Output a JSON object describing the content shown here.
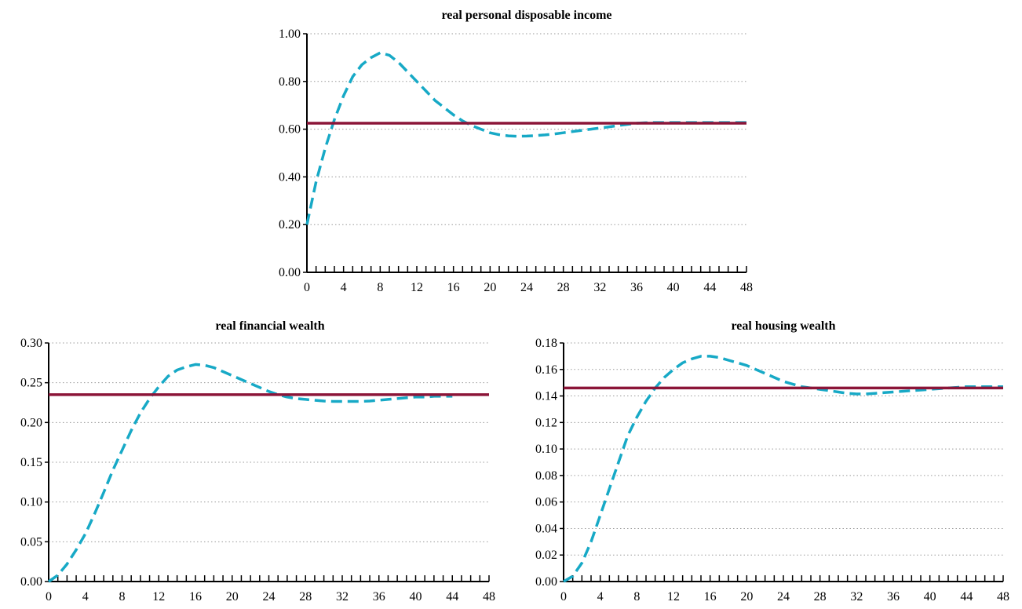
{
  "colors": {
    "series_dashed": "#17a9c6",
    "series_flat": "#8b1538",
    "grid": "#9a9a9a",
    "axis": "#000000"
  },
  "chart_data": [
    {
      "type": "line",
      "title": "real personal disposable income",
      "xlabel": "",
      "ylabel": "",
      "xlim": [
        0,
        48
      ],
      "ylim": [
        0,
        1.0
      ],
      "x_ticks": [
        "0",
        "4",
        "8",
        "12",
        "16",
        "20",
        "24",
        "28",
        "32",
        "36",
        "40",
        "44",
        "48"
      ],
      "y_ticks": [
        "0.00",
        "0.20",
        "0.40",
        "0.60",
        "0.80",
        "1.00"
      ],
      "grid": "horizontal dotted",
      "series": [
        {
          "style": "dashed",
          "x": [
            0,
            1,
            2,
            3,
            4,
            5,
            6,
            7,
            8,
            9,
            10,
            11,
            12,
            13,
            14,
            15,
            16,
            17,
            18,
            19,
            20,
            21,
            22,
            23,
            24,
            25,
            26,
            27,
            28,
            29,
            30,
            31,
            32,
            33,
            34,
            35,
            36,
            37,
            38,
            39,
            40,
            41,
            42,
            43,
            44,
            45,
            46,
            47,
            48
          ],
          "y": [
            0.2,
            0.38,
            0.52,
            0.64,
            0.74,
            0.82,
            0.87,
            0.9,
            0.92,
            0.91,
            0.88,
            0.84,
            0.8,
            0.76,
            0.72,
            0.69,
            0.66,
            0.635,
            0.615,
            0.6,
            0.585,
            0.577,
            0.572,
            0.57,
            0.571,
            0.573,
            0.576,
            0.58,
            0.585,
            0.59,
            0.595,
            0.6,
            0.605,
            0.61,
            0.615,
            0.62,
            0.625,
            0.627,
            0.628,
            0.628,
            0.628,
            0.628,
            0.628,
            0.628,
            0.628,
            0.628,
            0.628,
            0.628,
            0.628
          ]
        },
        {
          "style": "solid",
          "x": [
            0,
            48
          ],
          "y": [
            0.625,
            0.625
          ]
        }
      ]
    },
    {
      "type": "line",
      "title": "real financial wealth",
      "xlabel": "",
      "ylabel": "",
      "xlim": [
        0,
        48
      ],
      "ylim": [
        0,
        0.3
      ],
      "x_ticks": [
        "0",
        "4",
        "8",
        "12",
        "16",
        "20",
        "24",
        "28",
        "32",
        "36",
        "40",
        "44",
        "48"
      ],
      "y_ticks": [
        "0.00",
        "0.05",
        "0.10",
        "0.15",
        "0.20",
        "0.25",
        "0.30"
      ],
      "grid": "horizontal dotted",
      "series": [
        {
          "style": "dashed",
          "x": [
            0,
            1,
            2,
            3,
            4,
            5,
            6,
            7,
            8,
            9,
            10,
            11,
            12,
            13,
            14,
            15,
            16,
            17,
            18,
            19,
            20,
            21,
            22,
            23,
            24,
            25,
            26,
            27,
            28,
            29,
            30,
            31,
            32,
            33,
            34,
            35,
            36,
            37,
            38,
            39,
            40,
            41,
            42,
            43,
            44
          ],
          "y": [
            0.0,
            0.008,
            0.022,
            0.04,
            0.06,
            0.085,
            0.112,
            0.14,
            0.165,
            0.19,
            0.212,
            0.23,
            0.245,
            0.258,
            0.266,
            0.27,
            0.273,
            0.272,
            0.269,
            0.264,
            0.259,
            0.254,
            0.249,
            0.244,
            0.239,
            0.235,
            0.232,
            0.23,
            0.229,
            0.228,
            0.227,
            0.2265,
            0.2265,
            0.2265,
            0.2265,
            0.227,
            0.228,
            0.229,
            0.23,
            0.231,
            0.232,
            0.232,
            0.233,
            0.233,
            0.233
          ]
        },
        {
          "style": "solid",
          "x": [
            0,
            48
          ],
          "y": [
            0.235,
            0.235
          ]
        }
      ]
    },
    {
      "type": "line",
      "title": "real housing wealth",
      "xlabel": "",
      "ylabel": "",
      "xlim": [
        0,
        48
      ],
      "ylim": [
        0,
        0.18
      ],
      "x_ticks": [
        "0",
        "4",
        "8",
        "12",
        "16",
        "20",
        "24",
        "28",
        "32",
        "36",
        "40",
        "44",
        "48"
      ],
      "y_ticks": [
        "0.00",
        "0.02",
        "0.04",
        "0.06",
        "0.08",
        "0.10",
        "0.12",
        "0.14",
        "0.16",
        "0.18"
      ],
      "grid": "horizontal dotted",
      "series": [
        {
          "style": "dashed",
          "x": [
            0,
            1,
            2,
            3,
            4,
            5,
            6,
            7,
            8,
            9,
            10,
            11,
            12,
            13,
            14,
            15,
            16,
            17,
            18,
            19,
            20,
            21,
            22,
            23,
            24,
            25,
            26,
            27,
            28,
            29,
            30,
            31,
            32,
            33,
            34,
            35,
            36,
            37,
            38,
            39,
            40,
            41,
            42,
            43,
            44,
            45,
            46,
            47,
            48
          ],
          "y": [
            0.0,
            0.004,
            0.014,
            0.03,
            0.05,
            0.07,
            0.09,
            0.11,
            0.124,
            0.136,
            0.146,
            0.154,
            0.16,
            0.165,
            0.168,
            0.17,
            0.17,
            0.169,
            0.167,
            0.165,
            0.163,
            0.16,
            0.157,
            0.154,
            0.151,
            0.149,
            0.147,
            0.146,
            0.145,
            0.144,
            0.143,
            0.142,
            0.1415,
            0.1415,
            0.142,
            0.1425,
            0.143,
            0.1435,
            0.144,
            0.1445,
            0.145,
            0.1455,
            0.146,
            0.1465,
            0.147,
            0.147,
            0.147,
            0.147,
            0.147
          ]
        },
        {
          "style": "solid",
          "x": [
            0,
            48
          ],
          "y": [
            0.146,
            0.146
          ]
        }
      ]
    }
  ]
}
